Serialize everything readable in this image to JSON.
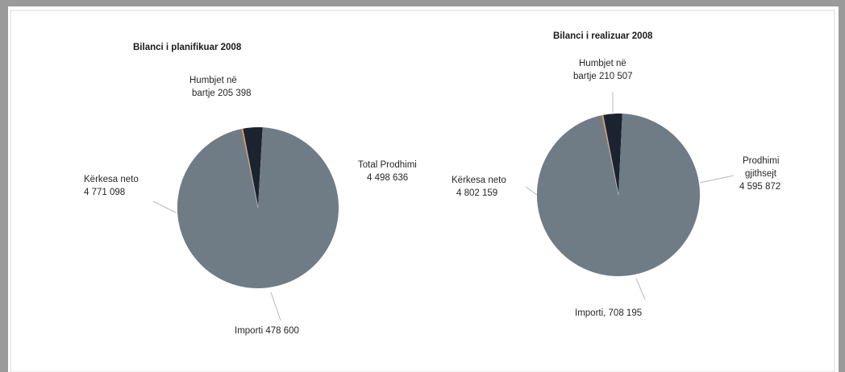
{
  "colors": {
    "frame": "#9a9a9a",
    "slice_main": "#6f7c86",
    "slice_import": "#f07f28",
    "slice_losses": "#1b2330",
    "separator": "#aeb5bb"
  },
  "chart_data": [
    {
      "type": "pie",
      "title": "Bilanci i planifikuar 2008",
      "slices": [
        {
          "key": "losses",
          "label_lines": [
            "Humbjet në",
            "bartje 205 398"
          ],
          "value": 205398
        },
        {
          "key": "production",
          "label_lines": [
            "Total Prodhimi",
            "4 498 636"
          ],
          "value": 4498636
        },
        {
          "key": "import",
          "label_lines": [
            "Importi 478 600"
          ],
          "value": 478600
        },
        {
          "key": "demand",
          "label_lines": [
            "Kërkesa neto",
            "4 771 098"
          ],
          "value": 4771098
        }
      ]
    },
    {
      "type": "pie",
      "title": "Bilanci i realizuar 2008",
      "slices": [
        {
          "key": "losses",
          "label_lines": [
            "Humbjet në",
            "bartje 210 507"
          ],
          "value": 210507
        },
        {
          "key": "production",
          "label_lines": [
            "Prodhimi",
            "gjithsejt",
            "4 595 872"
          ],
          "value": 4595872
        },
        {
          "key": "import",
          "label_lines": [
            "Importi, 708 195"
          ],
          "value": 708195
        },
        {
          "key": "demand",
          "label_lines": [
            "Kërkesa neto",
            "4 802 159"
          ],
          "value": 4802159
        }
      ]
    }
  ]
}
